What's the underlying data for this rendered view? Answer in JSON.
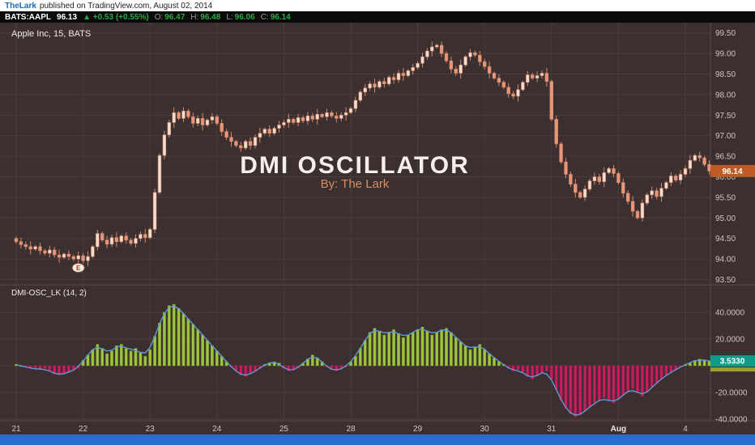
{
  "meta": {
    "publisher": "TheLark",
    "published_text": "published on TradingView.com, August 02, 2014"
  },
  "quote": {
    "symbol": "BATS:AAPL",
    "last": "96.13",
    "up_arrow": "▲",
    "change": "+0.53 (+0.55%)",
    "open_label": "O:",
    "open": "96.47",
    "high_label": "H:",
    "high": "96.48",
    "low_label": "L:",
    "low": "96.06",
    "close_label": "C:",
    "close": "96.14"
  },
  "chart": {
    "pane_label": "Apple Inc, 15, BATS",
    "watermark_title": "DMI OSCILLATOR",
    "watermark_subtitle": "By: The Lark",
    "indicator_label": "DMI-OSC_LK (14, 2)",
    "earnings_marker": "E",
    "price_tag": "96.14",
    "osc_tag": "3.5330",
    "price_axis_labels": [
      "99.50",
      "99.00",
      "98.50",
      "98.00",
      "97.50",
      "97.00",
      "96.50",
      "96.00",
      "95.50",
      "95.00",
      "94.50",
      "94.00",
      "93.50"
    ],
    "osc_axis_labels": [
      "40.0000",
      "20.0000",
      "-20.0000",
      "-40.0000"
    ]
  },
  "chart_data": {
    "type": "candlestick",
    "title": "Apple Inc, 15, BATS — DMI OSCILLATOR, By: The Lark",
    "x_axis": {
      "labels": [
        {
          "label": "21",
          "bar": 0
        },
        {
          "label": "22",
          "bar": 14
        },
        {
          "label": "23",
          "bar": 28
        },
        {
          "label": "24",
          "bar": 42
        },
        {
          "label": "25",
          "bar": 56
        },
        {
          "label": "28",
          "bar": 70
        },
        {
          "label": "29",
          "bar": 84
        },
        {
          "label": "30",
          "bar": 98
        },
        {
          "label": "31",
          "bar": 112
        },
        {
          "label": "Aug",
          "bar": 126
        },
        {
          "label": "4",
          "bar": 140
        }
      ]
    },
    "price_pane": {
      "ylim": [
        93.5,
        99.5
      ],
      "grid_step": 0.5,
      "first_open": 94.5,
      "last_price": 96.14,
      "closes": [
        94.42,
        94.35,
        94.3,
        94.24,
        94.3,
        94.2,
        94.14,
        94.22,
        94.1,
        94.04,
        94.12,
        94.06,
        94.0,
        94.08,
        93.96,
        94.06,
        94.3,
        94.62,
        94.46,
        94.36,
        94.52,
        94.42,
        94.56,
        94.46,
        94.38,
        94.5,
        94.6,
        94.52,
        94.72,
        95.62,
        96.52,
        97.02,
        97.32,
        97.56,
        97.42,
        97.6,
        97.46,
        97.3,
        97.42,
        97.26,
        97.38,
        97.46,
        97.3,
        97.1,
        96.96,
        96.86,
        96.76,
        96.7,
        96.86,
        96.76,
        96.96,
        97.06,
        97.16,
        97.06,
        97.18,
        97.26,
        97.32,
        97.4,
        97.32,
        97.44,
        97.36,
        97.48,
        97.4,
        97.52,
        97.46,
        97.56,
        97.48,
        97.42,
        97.5,
        97.56,
        97.66,
        97.86,
        98.06,
        98.16,
        98.26,
        98.18,
        98.32,
        98.26,
        98.42,
        98.36,
        98.52,
        98.46,
        98.58,
        98.66,
        98.76,
        98.92,
        99.06,
        99.16,
        99.2,
        99.0,
        98.82,
        98.62,
        98.52,
        98.72,
        98.92,
        99.02,
        98.96,
        98.8,
        98.68,
        98.52,
        98.4,
        98.3,
        98.18,
        98.02,
        97.96,
        98.12,
        98.3,
        98.48,
        98.4,
        98.46,
        98.52,
        98.32,
        97.4,
        96.8,
        96.36,
        96.06,
        95.82,
        95.62,
        95.5,
        95.7,
        95.9,
        96.0,
        95.88,
        96.1,
        96.2,
        96.08,
        95.86,
        95.6,
        95.4,
        95.16,
        95.0,
        95.36,
        95.56,
        95.66,
        95.52,
        95.72,
        95.86,
        96.02,
        95.92,
        96.06,
        96.2,
        96.4,
        96.52,
        96.46,
        96.3,
        96.14
      ]
    },
    "oscillator_pane": {
      "name": "DMI-OSC_LK (14, 2)",
      "type": "bar",
      "ylim": [
        -40,
        40
      ],
      "grid_step": 20,
      "last_value": 3.533,
      "values": [
        1,
        0,
        -1,
        -2,
        -2,
        -3,
        -2,
        -4,
        -6,
        -7,
        -6,
        -5,
        -3,
        -2,
        4,
        8,
        12,
        16,
        13,
        9,
        11,
        15,
        16,
        13,
        11,
        13,
        10,
        7,
        12,
        22,
        32,
        40,
        45,
        46,
        43,
        39,
        35,
        31,
        27,
        23,
        19,
        15,
        11,
        7,
        3,
        -1,
        -4,
        -7,
        -8,
        -6,
        -4,
        -2,
        1,
        2,
        3,
        2,
        -2,
        -4,
        -3,
        -2,
        2,
        5,
        8,
        6,
        3,
        -1,
        -3,
        -4,
        -2,
        -1,
        3,
        7,
        13,
        19,
        25,
        28,
        26,
        23,
        25,
        27,
        24,
        21,
        23,
        25,
        27,
        29,
        26,
        23,
        25,
        27,
        28,
        25,
        21,
        18,
        15,
        12,
        14,
        16,
        12,
        9,
        6,
        3,
        1,
        -2,
        -4,
        -3,
        -5,
        -8,
        -10,
        -7,
        -5,
        -4,
        -10,
        -18,
        -26,
        -32,
        -36,
        -38,
        -37,
        -34,
        -31,
        -28,
        -26,
        -24,
        -26,
        -28,
        -25,
        -22,
        -19,
        -17,
        -20,
        -23,
        -20,
        -16,
        -13,
        -10,
        -7,
        -5,
        -3,
        -1,
        1,
        2,
        4,
        5,
        4,
        3.533
      ]
    }
  },
  "colors": {
    "bg": "#3b2f2f",
    "grid": "#4b3d3a",
    "separator": "#5a4a46",
    "axis_text": "#cfc6bf",
    "axis_text_bright": "#f0eae5",
    "candle_up": "#f7ddd0",
    "candle_down": "#ea9478",
    "candle_border": "#cf8a6e",
    "hist_pos": "#9fc53c",
    "hist_pos_border": "#7ea32c",
    "hist_neg": "#c91d62",
    "hist_neg_border": "#a5154e",
    "signal_line": "#5e9bd3",
    "price_tag_bg": "#bf5b26",
    "osc_tag_bg": "#0f9d8a",
    "osc_tag2_bg": "#9aa12e",
    "watermark_title": "#f3efeb",
    "watermark_sub": "#d98e62",
    "publisher_blue": "#1a6bb5",
    "quote_green": "#2da844",
    "e_fill": "#f7eedd",
    "e_border": "#8a5b49",
    "e_text": "#a8352a",
    "blue_bar": "#2b6fce"
  }
}
